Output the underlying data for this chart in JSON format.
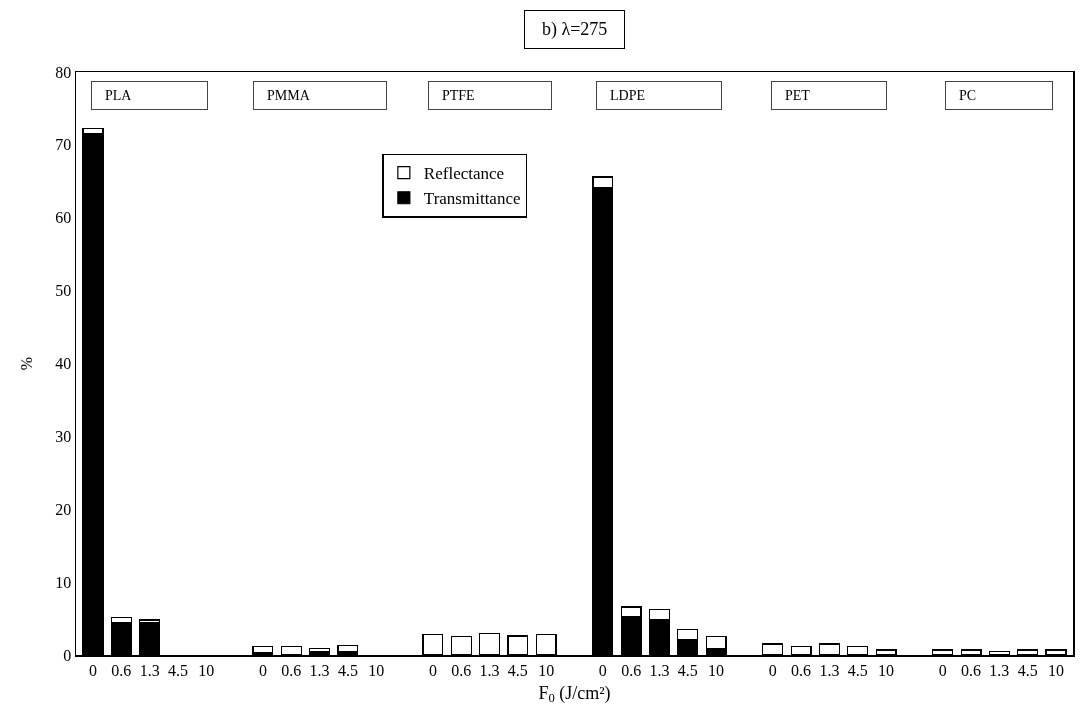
{
  "chart_data": {
    "type": "bar",
    "stacked": true,
    "title": "b) λ=275",
    "xlabel": "F$_{0}$ (J/cm²)",
    "ylabel": "%",
    "categories": [
      "0",
      "0.6",
      "1.3",
      "4.5",
      "10",
      null,
      "0",
      "0.6",
      "1.3",
      "4.5",
      "10",
      null,
      "0",
      "0.6",
      "1.3",
      "4.5",
      "10",
      null,
      "0",
      "0.6",
      "1.3",
      "4.5",
      "10",
      null,
      "0",
      "0.6",
      "1.3",
      "4.5",
      "10",
      null,
      "0",
      "0.6",
      "1.3",
      "4.5",
      "10"
    ],
    "series": [
      {
        "name": "Transmittance",
        "color": "#000000",
        "values": [
          71.5,
          4.5,
          4.4,
          null,
          null,
          null,
          0.3,
          null,
          0.4,
          0.5,
          null,
          null,
          null,
          null,
          0.1,
          0.1,
          null,
          null,
          64.2,
          5.3,
          4.9,
          2.1,
          0.9,
          null,
          null,
          null,
          null,
          null,
          null,
          null,
          null,
          null,
          null,
          null,
          null
        ]
      },
      {
        "name": "Reflectance",
        "color": "#ffffff",
        "values": [
          0.8,
          0.7,
          0.4,
          null,
          null,
          null,
          0.9,
          1.2,
          0.5,
          0.8,
          null,
          null,
          2.8,
          2.5,
          2.9,
          2.5,
          2.8,
          null,
          1.4,
          1.3,
          1.3,
          1.4,
          1.6,
          null,
          1.5,
          1.2,
          1.5,
          1.2,
          0.7,
          null,
          0.7,
          0.7,
          0.5,
          0.7,
          0.7
        ]
      }
    ],
    "annotations": [
      "PLA",
      "PMMA",
      "PTFE",
      "LDPE",
      "PET",
      "PC"
    ],
    "ylim": [
      0,
      80
    ],
    "yticks": [
      0,
      10,
      20,
      30,
      40,
      50,
      60,
      70,
      80
    ],
    "grid": false,
    "legend": "top"
  }
}
